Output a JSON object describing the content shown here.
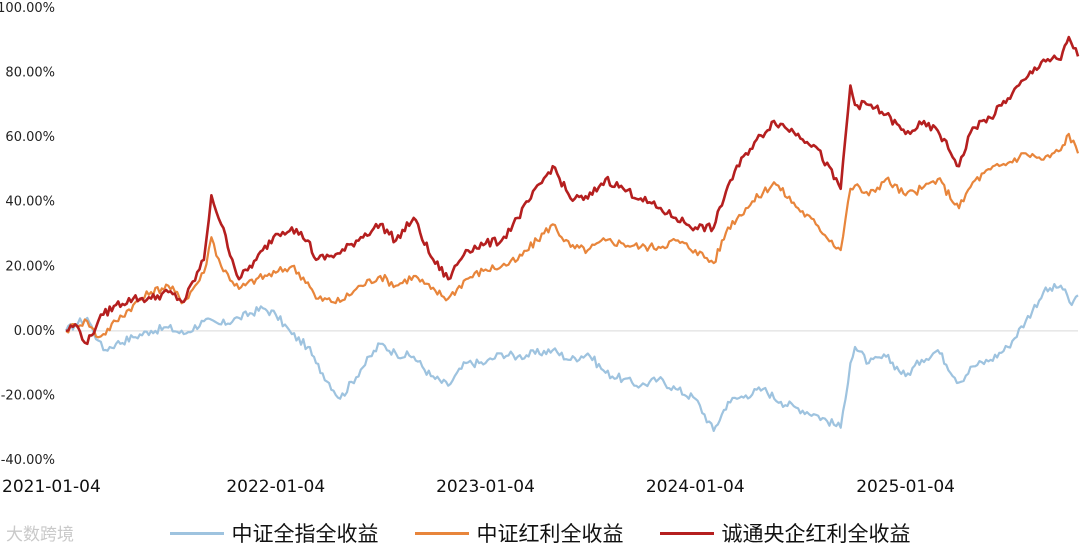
{
  "watermark": "大数跨境",
  "chart_data": {
    "type": "line",
    "title": "",
    "xlabel": "",
    "ylabel": "",
    "x_tick_labels": [
      "2021-01-04",
      "2022-01-04",
      "2023-01-04",
      "2024-01-04",
      "2025-01-04"
    ],
    "y_tick_labels": [
      "100.00%",
      "80.00%",
      "60.00%",
      "40.00%",
      "20.00%",
      "0.00%",
      "-20.00%",
      "-40.00%"
    ],
    "y_ticks": [
      100,
      80,
      60,
      40,
      20,
      0,
      -20,
      -40
    ],
    "ylim": [
      -40,
      100
    ],
    "xlim": [
      "2021-01-04",
      "2025-10-31"
    ],
    "y_unit": "%",
    "grid": false,
    "zero_line": true,
    "legend_position": "bottom",
    "series": [
      {
        "name": "中证全指全收益",
        "color": "#9ec3df",
        "points": [
          [
            "2021-01-04",
            0
          ],
          [
            "2021-01-20",
            2
          ],
          [
            "2021-02-10",
            4
          ],
          [
            "2021-03-01",
            -3
          ],
          [
            "2021-03-10",
            -6
          ],
          [
            "2021-04-01",
            -4
          ],
          [
            "2021-05-01",
            -2
          ],
          [
            "2021-06-01",
            0
          ],
          [
            "2021-07-01",
            1
          ],
          [
            "2021-07-28",
            -1
          ],
          [
            "2021-09-01",
            3
          ],
          [
            "2021-10-01",
            2
          ],
          [
            "2021-11-01",
            4
          ],
          [
            "2021-12-13",
            7
          ],
          [
            "2022-01-04",
            5
          ],
          [
            "2022-02-01",
            -1
          ],
          [
            "2022-03-01",
            -5
          ],
          [
            "2022-03-15",
            -10
          ],
          [
            "2022-04-26",
            -21
          ],
          [
            "2022-06-01",
            -12
          ],
          [
            "2022-07-05",
            -4
          ],
          [
            "2022-08-01",
            -7
          ],
          [
            "2022-09-01",
            -8
          ],
          [
            "2022-10-01",
            -14
          ],
          [
            "2022-10-31",
            -17
          ],
          [
            "2022-12-01",
            -10
          ],
          [
            "2023-01-04",
            -10
          ],
          [
            "2023-02-01",
            -7
          ],
          [
            "2023-03-01",
            -8
          ],
          [
            "2023-05-01",
            -6
          ],
          [
            "2023-06-01",
            -9
          ],
          [
            "2023-07-01",
            -7
          ],
          [
            "2023-08-01",
            -13
          ],
          [
            "2023-09-01",
            -15
          ],
          [
            "2023-10-01",
            -17
          ],
          [
            "2023-11-01",
            -15
          ],
          [
            "2023-12-01",
            -18
          ],
          [
            "2024-01-04",
            -21
          ],
          [
            "2024-02-05",
            -31
          ],
          [
            "2024-03-01",
            -22
          ],
          [
            "2024-04-01",
            -20
          ],
          [
            "2024-05-01",
            -18
          ],
          [
            "2024-06-01",
            -22
          ],
          [
            "2024-07-01",
            -24
          ],
          [
            "2024-08-01",
            -26
          ],
          [
            "2024-09-13",
            -30
          ],
          [
            "2024-09-30",
            -10
          ],
          [
            "2024-10-08",
            -5
          ],
          [
            "2024-11-01",
            -10
          ],
          [
            "2024-12-01",
            -8
          ],
          [
            "2025-01-04",
            -14
          ],
          [
            "2025-02-01",
            -9
          ],
          [
            "2025-03-01",
            -6
          ],
          [
            "2025-04-07",
            -16
          ],
          [
            "2025-05-01",
            -11
          ],
          [
            "2025-06-01",
            -9
          ],
          [
            "2025-07-01",
            -5
          ],
          [
            "2025-08-01",
            3
          ],
          [
            "2025-09-01",
            12
          ],
          [
            "2025-10-01",
            14
          ],
          [
            "2025-10-20",
            8
          ],
          [
            "2025-10-31",
            11
          ]
        ]
      },
      {
        "name": "中证红利全收益",
        "color": "#e8853b",
        "points": [
          [
            "2021-01-04",
            0
          ],
          [
            "2021-01-20",
            2
          ],
          [
            "2021-02-10",
            3
          ],
          [
            "2021-03-01",
            -2
          ],
          [
            "2021-03-10",
            -1
          ],
          [
            "2021-04-01",
            3
          ],
          [
            "2021-05-01",
            8
          ],
          [
            "2021-06-01",
            12
          ],
          [
            "2021-07-01",
            14
          ],
          [
            "2021-07-28",
            9
          ],
          [
            "2021-09-01",
            18
          ],
          [
            "2021-09-14",
            29
          ],
          [
            "2021-10-01",
            20
          ],
          [
            "2021-11-01",
            13
          ],
          [
            "2021-12-01",
            16
          ],
          [
            "2022-01-04",
            18
          ],
          [
            "2022-02-01",
            20
          ],
          [
            "2022-03-01",
            15
          ],
          [
            "2022-03-15",
            10
          ],
          [
            "2022-04-26",
            9
          ],
          [
            "2022-06-01",
            14
          ],
          [
            "2022-07-05",
            17
          ],
          [
            "2022-08-01",
            14
          ],
          [
            "2022-09-01",
            17
          ],
          [
            "2022-10-01",
            13
          ],
          [
            "2022-10-31",
            10
          ],
          [
            "2022-12-01",
            16
          ],
          [
            "2023-01-04",
            19
          ],
          [
            "2023-02-01",
            20
          ],
          [
            "2023-03-01",
            22
          ],
          [
            "2023-05-01",
            33
          ],
          [
            "2023-06-01",
            26
          ],
          [
            "2023-07-01",
            25
          ],
          [
            "2023-08-01",
            28
          ],
          [
            "2023-09-01",
            27
          ],
          [
            "2023-10-01",
            26
          ],
          [
            "2023-11-01",
            26
          ],
          [
            "2023-12-01",
            28
          ],
          [
            "2024-01-04",
            25
          ],
          [
            "2024-02-05",
            21
          ],
          [
            "2024-03-01",
            32
          ],
          [
            "2024-04-01",
            38
          ],
          [
            "2024-05-20",
            46
          ],
          [
            "2024-07-01",
            38
          ],
          [
            "2024-08-01",
            33
          ],
          [
            "2024-09-13",
            25
          ],
          [
            "2024-09-30",
            44
          ],
          [
            "2024-10-08",
            45
          ],
          [
            "2024-11-01",
            42
          ],
          [
            "2024-12-01",
            47
          ],
          [
            "2025-01-04",
            42
          ],
          [
            "2025-02-01",
            44
          ],
          [
            "2025-03-01",
            47
          ],
          [
            "2025-04-07",
            38
          ],
          [
            "2025-05-01",
            46
          ],
          [
            "2025-06-01",
            50
          ],
          [
            "2025-07-01",
            52
          ],
          [
            "2025-08-01",
            55
          ],
          [
            "2025-09-01",
            53
          ],
          [
            "2025-10-01",
            56
          ],
          [
            "2025-10-15",
            61
          ],
          [
            "2025-10-31",
            55
          ]
        ]
      },
      {
        "name": "诚通央企红利全收益",
        "color": "#b51f1f",
        "points": [
          [
            "2021-01-04",
            0
          ],
          [
            "2021-01-20",
            2
          ],
          [
            "2021-02-10",
            -4
          ],
          [
            "2021-03-01",
            3
          ],
          [
            "2021-03-10",
            5
          ],
          [
            "2021-04-01",
            8
          ],
          [
            "2021-05-01",
            10
          ],
          [
            "2021-06-01",
            10
          ],
          [
            "2021-07-01",
            12
          ],
          [
            "2021-07-28",
            9
          ],
          [
            "2021-09-01",
            22
          ],
          [
            "2021-09-14",
            42
          ],
          [
            "2021-10-01",
            33
          ],
          [
            "2021-11-01",
            16
          ],
          [
            "2021-12-01",
            22
          ],
          [
            "2022-01-04",
            30
          ],
          [
            "2022-02-01",
            32
          ],
          [
            "2022-03-01",
            28
          ],
          [
            "2022-03-15",
            22
          ],
          [
            "2022-04-26",
            24
          ],
          [
            "2022-06-01",
            29
          ],
          [
            "2022-07-05",
            33
          ],
          [
            "2022-08-01",
            28
          ],
          [
            "2022-09-01",
            35
          ],
          [
            "2022-10-01",
            23
          ],
          [
            "2022-10-31",
            16
          ],
          [
            "2022-12-01",
            25
          ],
          [
            "2023-01-04",
            27
          ],
          [
            "2023-02-01",
            28
          ],
          [
            "2023-03-01",
            35
          ],
          [
            "2023-05-01",
            51
          ],
          [
            "2023-06-01",
            41
          ],
          [
            "2023-07-01",
            41
          ],
          [
            "2023-08-01",
            47
          ],
          [
            "2023-09-01",
            44
          ],
          [
            "2023-10-01",
            41
          ],
          [
            "2023-11-01",
            38
          ],
          [
            "2023-12-01",
            35
          ],
          [
            "2024-01-04",
            32
          ],
          [
            "2024-02-05",
            32
          ],
          [
            "2024-03-01",
            45
          ],
          [
            "2024-04-01",
            55
          ],
          [
            "2024-05-20",
            65
          ],
          [
            "2024-07-01",
            61
          ],
          [
            "2024-08-01",
            57
          ],
          [
            "2024-09-13",
            44
          ],
          [
            "2024-09-30",
            76
          ],
          [
            "2024-10-08",
            70
          ],
          [
            "2024-11-01",
            70
          ],
          [
            "2024-12-01",
            67
          ],
          [
            "2025-01-04",
            61
          ],
          [
            "2025-02-01",
            64
          ],
          [
            "2025-03-01",
            62
          ],
          [
            "2025-04-07",
            51
          ],
          [
            "2025-05-01",
            63
          ],
          [
            "2025-06-01",
            66
          ],
          [
            "2025-07-01",
            72
          ],
          [
            "2025-08-01",
            78
          ],
          [
            "2025-09-01",
            84
          ],
          [
            "2025-10-01",
            84
          ],
          [
            "2025-10-15",
            91
          ],
          [
            "2025-10-31",
            85
          ]
        ]
      }
    ]
  }
}
